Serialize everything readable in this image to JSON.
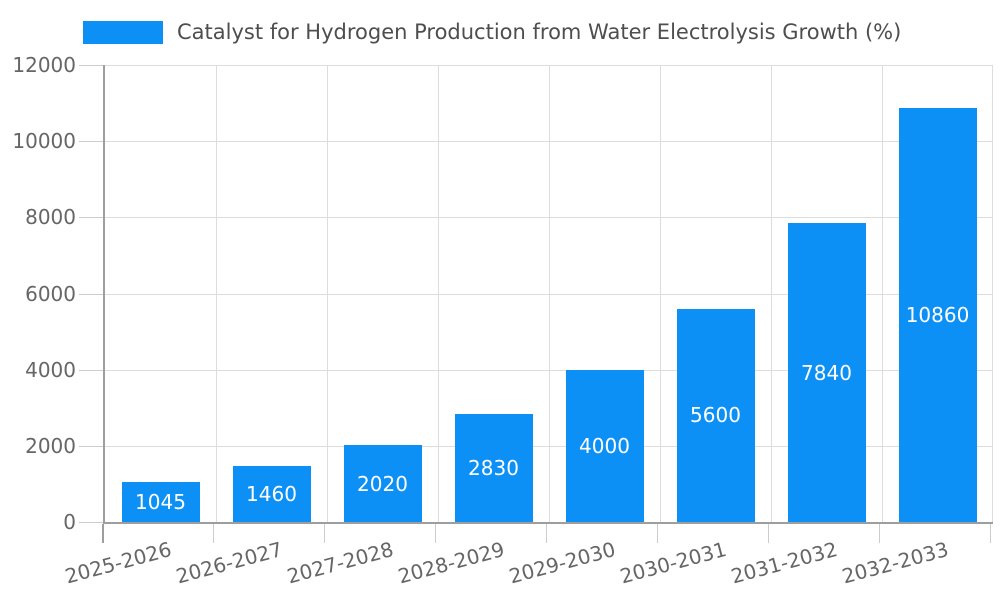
{
  "chart_data": {
    "type": "bar",
    "title": "Catalyst for Hydrogen Production from Water Electrolysis Growth (%)",
    "legend": {
      "label": "Catalyst for Hydrogen Production from Water Electrolysis Growth (%)",
      "position": "top-left",
      "swatch_color": "#0c90f5"
    },
    "categories": [
      "2025-2026",
      "2026-2027",
      "2027-2028",
      "2028-2029",
      "2029-2030",
      "2030-2031",
      "2031-2032",
      "2032-2033"
    ],
    "values": [
      1045,
      1460,
      2020,
      2830,
      4000,
      5600,
      7840,
      10860
    ],
    "bar_value_labels": [
      "1045",
      "1460",
      "2020",
      "2830",
      "4000",
      "5600",
      "7840",
      "10860"
    ],
    "xlabel": "",
    "ylabel": "",
    "ylim": [
      0,
      12000
    ],
    "yticks": [
      0,
      2000,
      4000,
      6000,
      8000,
      10000,
      12000
    ],
    "ytick_labels": [
      "0",
      "2000",
      "4000",
      "6000",
      "8000",
      "10000",
      "12000"
    ],
    "xtick_rotation_deg": -15,
    "grid": "both",
    "colors": {
      "bar_fill": "#0c90f5",
      "bar_value_text": "#ffffff",
      "grid_line": "#dddddd",
      "axis_line": "#9e9e9e",
      "tick_mark": "#cccccc",
      "tick_label_text": "#666666",
      "title_text": "#4e4e4e",
      "background": "#ffffff"
    }
  }
}
